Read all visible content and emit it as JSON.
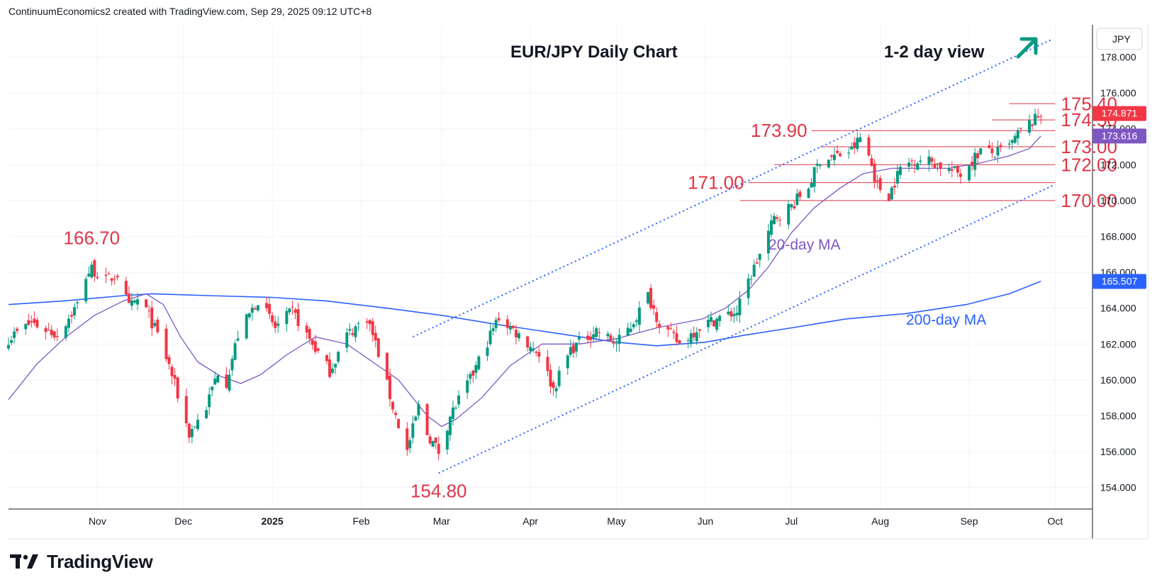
{
  "header": {
    "text": "ContinuumEconomics2 created with TradingView.com, Sep 29, 2025 09:12 UTC+8"
  },
  "footer": {
    "brand": "TradingView",
    "logo_icon": "tradingview-logo-icon"
  },
  "chart_data": {
    "type": "candlestick",
    "title": "EUR/JPY Daily Chart",
    "subtitle": "1-2 day view",
    "currency_label": "JPY",
    "arrow_icon": "arrow-up-right-icon",
    "colors": {
      "up": "#089981",
      "down": "#f23645",
      "ma20": "#7e57c2",
      "ma200": "#2962ff",
      "annotation": "#e03546",
      "arrow": "#089981",
      "channel": "#2962ff"
    },
    "ylim": [
      152.8,
      179.8
    ],
    "y_ticks": [
      "154.000",
      "156.000",
      "158.000",
      "160.000",
      "162.000",
      "164.000",
      "166.000",
      "168.000",
      "170.000",
      "172.000",
      "174.000",
      "176.000",
      "178.000"
    ],
    "x_ticks": [
      "Nov",
      "Dec",
      "2025",
      "Feb",
      "Mar",
      "Apr",
      "May",
      "Jun",
      "Jul",
      "Aug",
      "Sep",
      "Oct"
    ],
    "x_tick_dates": [
      "2024-11-01",
      "2024-12-01",
      "2025-01-01",
      "2025-02-01",
      "2025-03-01",
      "2025-04-01",
      "2025-05-01",
      "2025-06-01",
      "2025-07-01",
      "2025-08-01",
      "2025-09-01",
      "2025-10-01"
    ],
    "xlim": [
      "2024-10-01",
      "2025-10-14"
    ],
    "price_badges": [
      {
        "label": "174.871",
        "value": 174.871,
        "color": "#f23645"
      },
      {
        "label": "173.616",
        "value": 173.616,
        "color": "#7e57c2"
      },
      {
        "label": "165.507",
        "value": 165.507,
        "color": "#2962ff"
      }
    ],
    "levels": [
      {
        "label": "175.40",
        "value": 175.4,
        "from": "2025-09-15",
        "to": "2025-10-01"
      },
      {
        "label": "174.50",
        "value": 174.5,
        "from": "2025-09-09",
        "to": "2025-10-01"
      },
      {
        "label": "173.90",
        "value": 173.9,
        "from": "2025-07-08",
        "to": "2025-10-01"
      },
      {
        "label": "173.00",
        "value": 173.0,
        "from": "2025-07-11",
        "to": "2025-10-01"
      },
      {
        "label": "172.00",
        "value": 172.0,
        "from": "2025-06-25",
        "to": "2025-10-01"
      },
      {
        "label": "171.00",
        "value": 171.0,
        "from": "2025-06-16",
        "to": "2025-10-01"
      },
      {
        "label": "170.00",
        "value": 170.0,
        "from": "2025-06-13",
        "to": "2025-10-01"
      }
    ],
    "point_labels": [
      {
        "label": "166.70",
        "date": "2024-10-30",
        "value": 166.7
      },
      {
        "label": "154.80",
        "date": "2025-02-28",
        "value": 154.8
      }
    ],
    "channel": {
      "upper": [
        {
          "date": "2025-02-19",
          "value": 162.4
        },
        {
          "date": "2025-09-30",
          "value": 179.0
        }
      ],
      "lower": [
        {
          "date": "2025-02-28",
          "value": 154.8
        },
        {
          "date": "2025-10-01",
          "value": 170.9
        }
      ]
    },
    "ma_labels": [
      {
        "label": "20-day MA",
        "color": "#7e57c2"
      },
      {
        "label": "200-day MA",
        "color": "#2962ff"
      }
    ],
    "ma20": [
      [
        "2024-10-01",
        158.9
      ],
      [
        "2024-10-11",
        160.9
      ],
      [
        "2024-10-21",
        162.4
      ],
      [
        "2024-10-31",
        163.6
      ],
      [
        "2024-11-10",
        164.4
      ],
      [
        "2024-11-18",
        164.8
      ],
      [
        "2024-11-24",
        164.2
      ],
      [
        "2024-11-30",
        162.4
      ],
      [
        "2024-12-06",
        161.0
      ],
      [
        "2024-12-14",
        160.2
      ],
      [
        "2024-12-21",
        159.8
      ],
      [
        "2024-12-28",
        160.3
      ],
      [
        "2025-01-06",
        161.4
      ],
      [
        "2025-01-16",
        162.4
      ],
      [
        "2025-01-27",
        162.0
      ],
      [
        "2025-02-05",
        161.0
      ],
      [
        "2025-02-14",
        160.0
      ],
      [
        "2025-02-24",
        158.0
      ],
      [
        "2025-03-01",
        157.4
      ],
      [
        "2025-03-06",
        157.8
      ],
      [
        "2025-03-15",
        159.0
      ],
      [
        "2025-03-25",
        160.8
      ],
      [
        "2025-04-05",
        162.0
      ],
      [
        "2025-04-18",
        162.0
      ],
      [
        "2025-05-01",
        162.3
      ],
      [
        "2025-05-15",
        162.9
      ],
      [
        "2025-05-31",
        163.4
      ],
      [
        "2025-06-08",
        164.0
      ],
      [
        "2025-06-16",
        165.0
      ],
      [
        "2025-06-23",
        166.3
      ],
      [
        "2025-07-01",
        168.2
      ],
      [
        "2025-07-09",
        169.6
      ],
      [
        "2025-07-18",
        170.7
      ],
      [
        "2025-07-26",
        171.5
      ],
      [
        "2025-08-05",
        171.8
      ],
      [
        "2025-08-15",
        171.8
      ],
      [
        "2025-08-25",
        171.8
      ],
      [
        "2025-09-05",
        172.1
      ],
      [
        "2025-09-15",
        172.5
      ],
      [
        "2025-09-22",
        172.9
      ],
      [
        "2025-09-26",
        173.6
      ]
    ],
    "ma200": [
      [
        "2024-10-01",
        164.2
      ],
      [
        "2024-10-20",
        164.4
      ],
      [
        "2024-11-10",
        164.7
      ],
      [
        "2024-11-20",
        164.8
      ],
      [
        "2024-12-10",
        164.7
      ],
      [
        "2025-01-01",
        164.6
      ],
      [
        "2025-01-20",
        164.4
      ],
      [
        "2025-02-10",
        164.0
      ],
      [
        "2025-03-01",
        163.6
      ],
      [
        "2025-03-20",
        163.1
      ],
      [
        "2025-04-10",
        162.6
      ],
      [
        "2025-05-01",
        162.1
      ],
      [
        "2025-05-15",
        161.9
      ],
      [
        "2025-06-01",
        162.1
      ],
      [
        "2025-06-15",
        162.5
      ],
      [
        "2025-07-01",
        162.9
      ],
      [
        "2025-07-20",
        163.4
      ],
      [
        "2025-08-10",
        163.7
      ],
      [
        "2025-08-31",
        164.2
      ],
      [
        "2025-09-15",
        164.8
      ],
      [
        "2025-09-26",
        165.5
      ]
    ],
    "close_anchors": [
      [
        "2024-10-01",
        162.3
      ],
      [
        "2024-10-09",
        163.2
      ],
      [
        "2024-10-18",
        162.5
      ],
      [
        "2024-10-25",
        164.2
      ],
      [
        "2024-10-28",
        165.8
      ],
      [
        "2024-10-30",
        166.2
      ],
      [
        "2024-11-04",
        165.5
      ],
      [
        "2024-11-08",
        165.9
      ],
      [
        "2024-11-12",
        164.0
      ],
      [
        "2024-11-16",
        164.6
      ],
      [
        "2024-11-22",
        162.5
      ],
      [
        "2024-11-26",
        160.8
      ],
      [
        "2024-12-03",
        157.0
      ],
      [
        "2024-12-09",
        158.5
      ],
      [
        "2024-12-13",
        160.5
      ],
      [
        "2024-12-16",
        159.9
      ],
      [
        "2024-12-20",
        162.5
      ],
      [
        "2024-12-27",
        164.5
      ],
      [
        "2025-01-02",
        162.9
      ],
      [
        "2025-01-08",
        163.8
      ],
      [
        "2025-01-13",
        162.5
      ],
      [
        "2025-01-21",
        160.5
      ],
      [
        "2025-01-27",
        162.5
      ],
      [
        "2025-02-03",
        163.5
      ],
      [
        "2025-02-07",
        161.5
      ],
      [
        "2025-02-12",
        158.5
      ],
      [
        "2025-02-17",
        156.0
      ],
      [
        "2025-02-21",
        158.5
      ],
      [
        "2025-02-24",
        157.0
      ],
      [
        "2025-02-28",
        156.0
      ],
      [
        "2025-03-04",
        158.0
      ],
      [
        "2025-03-11",
        160.0
      ],
      [
        "2025-03-18",
        162.5
      ],
      [
        "2025-03-21",
        163.5
      ],
      [
        "2025-03-28",
        162.5
      ],
      [
        "2025-04-04",
        161.5
      ],
      [
        "2025-04-09",
        159.5
      ],
      [
        "2025-04-15",
        161.7
      ],
      [
        "2025-04-24",
        162.8
      ],
      [
        "2025-05-01",
        162.0
      ],
      [
        "2025-05-06",
        163.0
      ],
      [
        "2025-05-12",
        164.7
      ],
      [
        "2025-05-16",
        163.2
      ],
      [
        "2025-05-23",
        162.0
      ],
      [
        "2025-05-30",
        163.0
      ],
      [
        "2025-06-05",
        163.4
      ],
      [
        "2025-06-12",
        163.8
      ],
      [
        "2025-06-16",
        165.5
      ],
      [
        "2025-06-20",
        167.0
      ],
      [
        "2025-06-25",
        169.0
      ],
      [
        "2025-07-01",
        169.7
      ],
      [
        "2025-07-07",
        170.8
      ],
      [
        "2025-07-11",
        172.3
      ],
      [
        "2025-07-17",
        172.5
      ],
      [
        "2025-07-22",
        172.8
      ],
      [
        "2025-07-25",
        173.5
      ],
      [
        "2025-07-28",
        172.5
      ],
      [
        "2025-07-31",
        170.8
      ],
      [
        "2025-08-04",
        170.3
      ],
      [
        "2025-08-08",
        171.8
      ],
      [
        "2025-08-13",
        172.3
      ],
      [
        "2025-08-19",
        172.2
      ],
      [
        "2025-08-25",
        171.7
      ],
      [
        "2025-08-29",
        171.5
      ],
      [
        "2025-09-05",
        172.8
      ],
      [
        "2025-09-10",
        172.6
      ],
      [
        "2025-09-15",
        173.0
      ],
      [
        "2025-09-19",
        173.9
      ],
      [
        "2025-09-24",
        174.5
      ],
      [
        "2025-09-26",
        174.87
      ]
    ]
  }
}
